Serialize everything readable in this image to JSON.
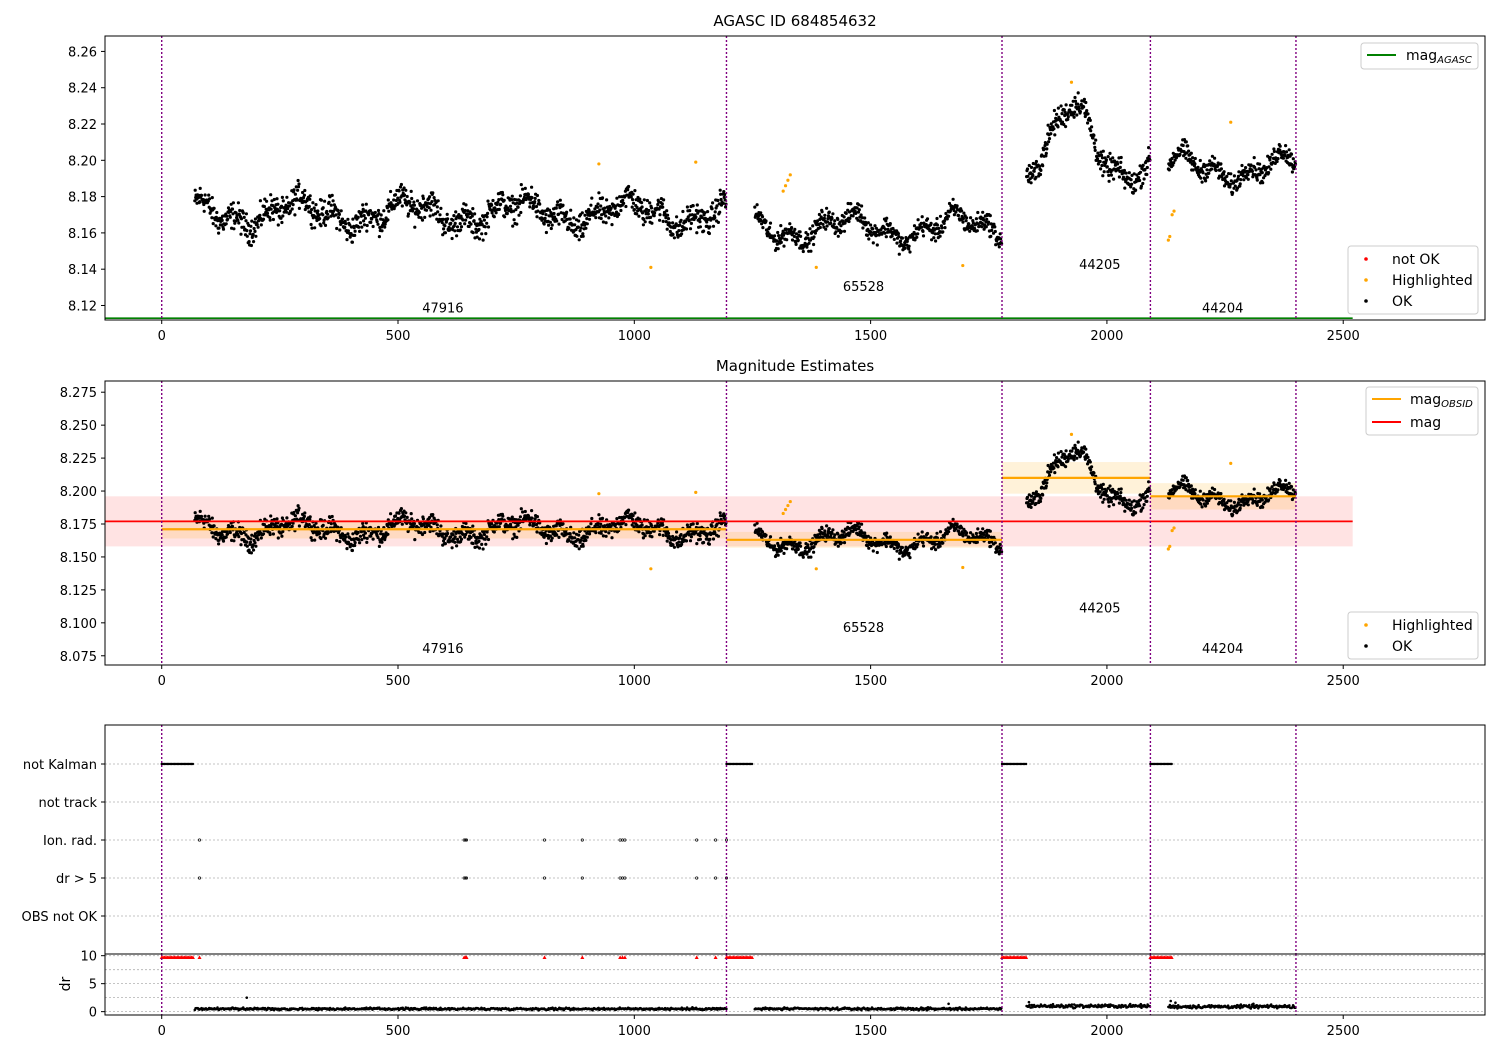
{
  "chart_data": [
    {
      "type": "scatter",
      "title": "AGASC ID 684854632",
      "xlabel": "",
      "ylabel": "",
      "xlim": [
        -120,
        2800
      ],
      "ylim": [
        8.112,
        8.2685
      ],
      "x_ticks": [
        0,
        500,
        1000,
        1500,
        2000,
        2500
      ],
      "y_ticks": [
        8.12,
        8.14,
        8.16,
        8.18,
        8.2,
        8.22,
        8.24,
        8.26
      ],
      "grid": false,
      "obs_boundaries": [
        0,
        1195,
        1778,
        2092,
        2400
      ],
      "segments": [
        {
          "obsid": "47916",
          "x_start": 70,
          "x_end": 1195,
          "center": 8.171,
          "amp": 0.02,
          "label_x": 595,
          "label_y": 8.116
        },
        {
          "obsid": "65528",
          "x_start": 1255,
          "x_end": 1778,
          "center": 8.163,
          "amp": 0.015,
          "label_x": 1485,
          "label_y": 8.128
        },
        {
          "obsid": "44205",
          "x_start": 1830,
          "x_end": 2092,
          "center": 8.21,
          "amp": 0.018,
          "label_x": 1985,
          "label_y": 8.14
        },
        {
          "obsid": "44204",
          "x_start": 2130,
          "x_end": 2400,
          "center": 8.196,
          "amp": 0.015,
          "label_x": 2245,
          "label_y": 8.116
        }
      ],
      "series": [
        {
          "name": "mag_AGASC",
          "type": "line",
          "color": "#008000",
          "x": [
            -120,
            2520
          ],
          "y": [
            8.113,
            8.113
          ]
        },
        {
          "name": "not OK",
          "color": "#ff0000",
          "points": []
        },
        {
          "name": "Highlighted",
          "color": "#ffa500",
          "points": [
            [
              925,
              8.198
            ],
            [
              1035,
              8.141
            ],
            [
              1130,
              8.199
            ],
            [
              1315,
              8.183
            ],
            [
              1320,
              8.186
            ],
            [
              1325,
              8.189
            ],
            [
              1330,
              8.192
            ],
            [
              1385,
              8.141
            ],
            [
              1695,
              8.142
            ],
            [
              1925,
              8.243
            ],
            [
              2130,
              8.156
            ],
            [
              2133,
              8.158
            ],
            [
              2138,
              8.17
            ],
            [
              2142,
              8.172
            ],
            [
              2262,
              8.221
            ]
          ]
        },
        {
          "name": "OK",
          "color": "#000000",
          "points": []
        }
      ],
      "legend_lines": {
        "main": "mag",
        "sub": "AGASC"
      },
      "legend_points": [
        "not OK",
        "Highlighted",
        "OK"
      ]
    },
    {
      "type": "scatter",
      "title": "Magnitude Estimates",
      "xlabel": "",
      "ylabel": "",
      "xlim": [
        -120,
        2800
      ],
      "ylim": [
        8.068,
        8.2835
      ],
      "x_ticks": [
        0,
        500,
        1000,
        1500,
        2000,
        2500
      ],
      "y_ticks": [
        8.075,
        8.1,
        8.125,
        8.15,
        8.175,
        8.2,
        8.225,
        8.25,
        8.275
      ],
      "grid": false,
      "obs_boundaries": [
        0,
        1195,
        1778,
        2092,
        2400
      ],
      "segment_labels": [
        {
          "obsid": "47916",
          "x": 595,
          "y": 8.077
        },
        {
          "obsid": "65528",
          "x": 1485,
          "y": 8.093
        },
        {
          "obsid": "44205",
          "x": 1985,
          "y": 8.108
        },
        {
          "obsid": "44204",
          "x": 2245,
          "y": 8.077
        }
      ],
      "series": [
        {
          "name": "mag_OBSID",
          "type": "step",
          "color": "#ffa500",
          "segments": [
            {
              "x_start": 0,
              "x_end": 1195,
              "y": 8.171,
              "band": [
                8.164,
                8.178
              ]
            },
            {
              "x_start": 1195,
              "x_end": 1778,
              "y": 8.163,
              "band": [
                8.157,
                8.169
              ]
            },
            {
              "x_start": 1778,
              "x_end": 2092,
              "y": 8.21,
              "band": [
                8.198,
                8.222
              ]
            },
            {
              "x_start": 2092,
              "x_end": 2400,
              "y": 8.196,
              "band": [
                8.186,
                8.206
              ]
            }
          ]
        },
        {
          "name": "mag",
          "type": "line",
          "color": "#ff0000",
          "x": [
            -120,
            2520
          ],
          "y": [
            8.177,
            8.177
          ],
          "band": [
            8.158,
            8.196
          ]
        },
        {
          "name": "Highlighted",
          "color": "#ffa500"
        },
        {
          "name": "OK",
          "color": "#000000"
        }
      ],
      "legend_lines": [
        {
          "main": "mag",
          "sub": "OBSID"
        },
        {
          "main": "mag",
          "sub": ""
        }
      ],
      "legend_points": [
        "Highlighted",
        "OK"
      ]
    },
    {
      "type": "scatter",
      "title": "",
      "xlabel": "",
      "ylabel": "",
      "xlim": [
        -120,
        2800
      ],
      "categories": [
        "not Kalman",
        "not track",
        "Ion. rad.",
        "dr > 5",
        "OBS not OK"
      ],
      "grid": true,
      "obs_boundaries": [
        0,
        1195,
        1778,
        2092,
        2400
      ],
      "flags": {
        "not Kalman": {
          "ranges": [
            [
              0,
              68
            ],
            [
              1195,
              1250
            ],
            [
              1778,
              1830
            ],
            [
              2092,
              2138
            ]
          ]
        },
        "not track": {
          "ranges": []
        },
        "Ion. rad.": {
          "points": [
            80,
            640,
            643,
            645,
            810,
            890,
            970,
            975,
            980,
            1132,
            1172,
            1195
          ]
        },
        "dr > 5": {
          "points": [
            80,
            640,
            643,
            645,
            810,
            890,
            970,
            975,
            980,
            1132,
            1172,
            1195
          ]
        },
        "OBS not OK": {
          "points": []
        }
      }
    },
    {
      "type": "scatter",
      "title": "",
      "xlabel": "",
      "ylabel": "dr",
      "xlim": [
        -120,
        2800
      ],
      "ylim": [
        -0.6,
        10.3
      ],
      "x_ticks": [
        0,
        500,
        1000,
        1500,
        2000,
        2500
      ],
      "y_ticks": [
        0,
        5,
        10
      ],
      "grid": true,
      "obs_boundaries": [
        0,
        1195,
        1778,
        2092,
        2400
      ],
      "clipped_marker_y": 9.7,
      "clipped_points": [
        80,
        640,
        643,
        645,
        810,
        890,
        970,
        975,
        980,
        1132,
        1172
      ],
      "clipped_ranges": [
        [
          0,
          68
        ],
        [
          1195,
          1250
        ],
        [
          1778,
          1830
        ],
        [
          2092,
          2138
        ]
      ],
      "dr_segments": [
        {
          "x_start": 70,
          "x_end": 1195,
          "level": 0.5,
          "spread": 0.3
        },
        {
          "x_start": 1255,
          "x_end": 1778,
          "level": 0.5,
          "spread": 0.3
        },
        {
          "x_start": 1830,
          "x_end": 2092,
          "level": 1.0,
          "spread": 0.45
        },
        {
          "x_start": 2130,
          "x_end": 2400,
          "level": 0.9,
          "spread": 0.45
        }
      ],
      "dr_outliers": [
        [
          180,
          2.5
        ],
        [
          1665,
          1.4
        ],
        [
          1835,
          1.7
        ],
        [
          2135,
          1.9
        ],
        [
          2145,
          1.6
        ],
        [
          2310,
          1.4
        ]
      ]
    }
  ],
  "colors": {
    "ok": "#000000",
    "highlighted": "#ffa500",
    "not_ok": "#ff0000",
    "boundary": "#800080",
    "agasc": "#008000",
    "mag": "#ff0000",
    "obsid": "#ffa500"
  }
}
